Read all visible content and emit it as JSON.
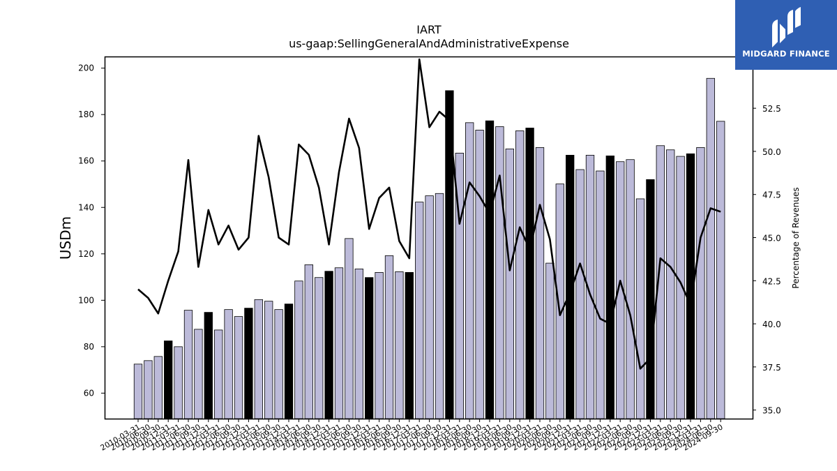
{
  "chart_data": {
    "type": "bar",
    "title": "IART",
    "subtitle": "us-gaap:SellingGeneralAndAdministrativeExpense",
    "ylabel": "USDm",
    "y2label": "Percentage of Revenues",
    "ylim": [
      49,
      205
    ],
    "y2lim": [
      34.5,
      55.5
    ],
    "yticks": [
      60,
      80,
      100,
      120,
      140,
      160,
      180,
      200
    ],
    "y2ticks": [
      35.0,
      37.5,
      40.0,
      42.5,
      45.0,
      47.5,
      50.0,
      52.5
    ],
    "categories": [
      "2010-03-31",
      "2010-06-30",
      "2010-09-30",
      "2010-12-31",
      "2011-03-31",
      "2011-06-30",
      "2011-09-30",
      "2011-12-31",
      "2012-03-31",
      "2012-06-30",
      "2012-09-30",
      "2012-12-31",
      "2013-03-31",
      "2013-06-30",
      "2013-09-30",
      "2013-12-31",
      "2014-03-31",
      "2014-06-30",
      "2014-09-30",
      "2014-12-31",
      "2015-03-31",
      "2015-06-30",
      "2015-09-30",
      "2015-12-31",
      "2016-03-31",
      "2016-06-30",
      "2016-09-30",
      "2016-12-31",
      "2017-03-31",
      "2017-06-30",
      "2017-09-30",
      "2017-12-31",
      "2018-03-31",
      "2018-06-30",
      "2018-09-30",
      "2018-12-31",
      "2019-03-31",
      "2019-06-30",
      "2019-09-30",
      "2019-12-31",
      "2020-03-31",
      "2020-06-30",
      "2020-09-30",
      "2020-12-31",
      "2021-03-31",
      "2021-06-30",
      "2021-09-30",
      "2021-12-31",
      "2022-03-31",
      "2022-06-30",
      "2022-09-30",
      "2022-12-31",
      "2023-03-31",
      "2023-06-30",
      "2023-09-30",
      "2023-12-31",
      "2024-03-31",
      "2024-06-30",
      "2024-09-30"
    ],
    "series": [
      {
        "kind": "bar",
        "values": [
          72.5,
          74,
          75.8,
          82.5,
          80,
          95.7,
          87.5,
          94.8,
          87.2,
          96,
          93,
          96.6,
          100.3,
          99.6,
          96,
          98.4,
          108.3,
          115.3,
          109.8,
          112.5,
          114,
          126.6,
          113.5,
          109.8,
          112,
          119.2,
          112.3,
          112,
          142.3,
          145,
          146,
          190.3,
          163.4,
          176.5,
          173.3,
          177.3,
          174.8,
          165.2,
          173,
          174.2,
          165.8,
          116,
          150.1,
          162.5,
          156.3,
          162.5,
          155.7,
          162.2,
          159.7,
          160.6,
          143.7,
          152,
          166.6,
          164.8,
          162,
          163.1,
          165.8,
          195.6,
          177.1
        ],
        "highlight": [
          false,
          false,
          false,
          true,
          false,
          false,
          false,
          true,
          false,
          false,
          false,
          true,
          false,
          false,
          false,
          true,
          false,
          false,
          false,
          true,
          false,
          false,
          false,
          true,
          false,
          false,
          false,
          true,
          false,
          false,
          false,
          true,
          false,
          false,
          false,
          true,
          false,
          false,
          false,
          true,
          false,
          false,
          false,
          true,
          false,
          false,
          false,
          true,
          false,
          false,
          false,
          true,
          false,
          false,
          false,
          true,
          false,
          false,
          false
        ]
      },
      {
        "kind": "line",
        "axis": "right",
        "values": [
          42,
          41.5,
          40.6,
          42.5,
          44.2,
          49.5,
          43.3,
          46.6,
          44.6,
          45.7,
          44.3,
          45,
          50.9,
          48.5,
          45,
          44.6,
          50.4,
          49.8,
          47.9,
          44.6,
          48.8,
          51.9,
          50.2,
          45.5,
          47.3,
          47.9,
          44.8,
          43.8,
          55.5,
          51.4,
          52.3,
          51.8,
          45.8,
          48.2,
          47.4,
          46.4,
          48.6,
          43.1,
          45.6,
          44.3,
          46.9,
          44.9,
          40.5,
          41.8,
          43.5,
          41.7,
          40.3,
          40,
          42.5,
          40.5,
          37.4,
          38,
          43.8,
          43.3,
          42.4,
          41.1,
          45,
          46.7,
          46.5
        ]
      }
    ],
    "colors": {
      "bar": "#bcbad9",
      "bar_highlight": "#000000",
      "line": "#000000"
    },
    "grid": false
  },
  "logo": {
    "text": "MIDGARD FINANCE"
  }
}
